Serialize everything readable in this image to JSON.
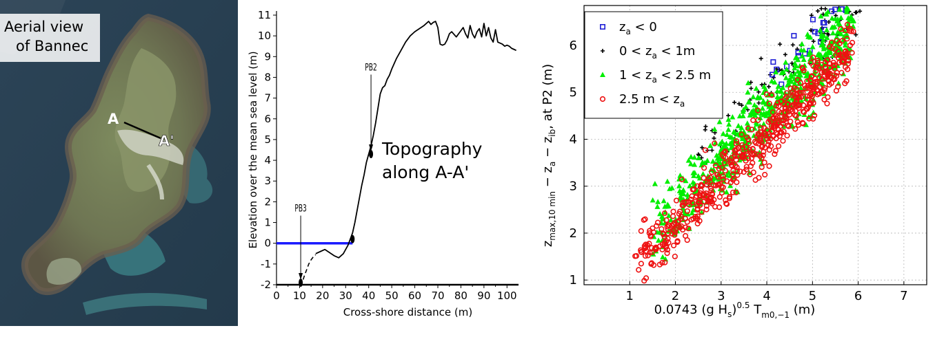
{
  "aerial": {
    "caption_line1": "Aerial view",
    "caption_line2": "of Bannec",
    "point_a": "A",
    "point_a_prime": "A'"
  },
  "topo_chart": {
    "chart_data": {
      "type": "line",
      "xlabel": "Cross-shore distance (m)",
      "ylabel": "Elevation over the mean sea level (m)",
      "xlim": [
        0,
        105
      ],
      "ylim": [
        -2,
        11
      ],
      "xticks": [
        0,
        10,
        20,
        30,
        40,
        50,
        60,
        70,
        80,
        90,
        100
      ],
      "yticks": [
        -2,
        -1,
        0,
        1,
        2,
        3,
        4,
        5,
        6,
        7,
        8,
        9,
        10,
        11
      ],
      "annotation_line1": "Topography",
      "annotation_line2": "along A-A'",
      "series": [
        {
          "x": [
            10,
            11,
            12,
            13,
            14,
            15,
            17,
            19,
            21,
            23,
            25,
            27,
            29,
            30,
            31,
            32,
            33,
            34,
            35,
            36,
            37,
            38,
            39,
            40,
            41,
            42,
            43,
            44,
            45,
            46,
            47,
            48,
            49,
            50,
            52,
            54,
            56,
            58,
            60,
            62,
            64,
            65,
            66,
            67,
            68,
            69,
            70,
            71,
            72,
            73,
            74,
            75,
            76,
            78,
            80,
            81,
            82,
            83,
            84,
            85,
            86,
            87,
            88,
            89,
            90,
            91,
            92,
            93,
            94,
            95,
            96,
            97,
            98,
            99,
            100,
            101,
            102,
            103,
            104
          ],
          "y": [
            -1.9,
            -1.95,
            -1.6,
            -1.3,
            -0.9,
            -0.7,
            -0.5,
            -0.4,
            -0.3,
            -0.45,
            -0.6,
            -0.7,
            -0.5,
            -0.3,
            -0.1,
            0.2,
            0.5,
            1.0,
            1.6,
            2.2,
            2.8,
            3.3,
            3.9,
            4.3,
            4.7,
            5.2,
            5.8,
            6.5,
            7.2,
            7.5,
            7.6,
            7.9,
            8.1,
            8.4,
            8.9,
            9.3,
            9.7,
            10.0,
            10.2,
            10.35,
            10.5,
            10.6,
            10.7,
            10.55,
            10.65,
            10.7,
            10.4,
            9.6,
            9.55,
            9.6,
            9.8,
            10.1,
            10.2,
            9.95,
            10.25,
            10.4,
            10.1,
            9.9,
            10.5,
            10.1,
            9.9,
            10.2,
            10.35,
            9.95,
            10.6,
            10.0,
            10.4,
            9.9,
            9.7,
            10.3,
            9.7,
            9.65,
            9.6,
            9.5,
            9.55,
            9.5,
            9.4,
            9.35,
            9.3
          ]
        }
      ],
      "dashed_segment": {
        "x": [
          10,
          11,
          12,
          13,
          14,
          15,
          16,
          17
        ],
        "y": [
          -1.9,
          -1.95,
          -1.6,
          -1.3,
          -1.0,
          -0.8,
          -0.65,
          -0.55
        ]
      },
      "sea_level_line": {
        "x": [
          0,
          33
        ],
        "y": [
          0,
          0
        ]
      },
      "seabed_line": {
        "x": [
          0,
          105
        ],
        "y": [
          -2,
          -2
        ]
      },
      "markers": [
        {
          "label": "PB3",
          "x": 10.5,
          "y": -1.9,
          "label_y": 1.2
        },
        {
          "label": "PB2",
          "x": 41,
          "y": 4.3,
          "label_y": 8.0
        }
      ],
      "dots": [
        {
          "x": 10.5,
          "y": -1.9
        },
        {
          "x": 33,
          "y": 0.2
        },
        {
          "x": 41,
          "y": 4.3
        }
      ],
      "colors": {
        "curve": "#000000",
        "sea": "#1a1aff"
      }
    }
  },
  "scatter_chart": {
    "chart_data": {
      "type": "scatter",
      "xlabel_parts": {
        "prefix": "0.0743 (g H",
        "sub1": "s",
        "mid": ")",
        "sup": "0.5",
        "t": " T",
        "sub2": "m0,−1",
        "suffix": "   (m)"
      },
      "ylabel_parts": {
        "z": "z",
        "sub1": "max,10 min",
        "mid1": " − z",
        "sub2": "a",
        "mid2": " − z",
        "sub3": "ib",
        "suffix": ",  at P2 (m)"
      },
      "xlim": [
        0,
        7.5
      ],
      "ylim": [
        0.9,
        6.85
      ],
      "xticks": [
        1,
        2,
        3,
        4,
        5,
        6,
        7
      ],
      "yticks": [
        1,
        2,
        3,
        4,
        5,
        6
      ],
      "grid": true,
      "legend_position": "top-left",
      "series": [
        {
          "name_parts": [
            "z",
            "a",
            " < 0"
          ],
          "marker": "square",
          "color": "#1f1fd6",
          "cloud": {
            "x_from": 4.0,
            "x_to": 6.5,
            "y_offset": 1.45,
            "spread": 0.45,
            "count": 45
          }
        },
        {
          "name_parts": [
            "0 < z",
            "a",
            " < 1m"
          ],
          "marker": "plus",
          "color": "#000000",
          "cloud": {
            "x_from": 2.5,
            "x_to": 6.2,
            "y_offset": 1.2,
            "spread": 0.55,
            "count": 110
          }
        },
        {
          "name_parts": [
            "1 < z",
            "a",
            " < 2.5 m"
          ],
          "marker": "triangle",
          "color": "#00ee00",
          "cloud": {
            "x_from": 1.5,
            "x_to": 5.9,
            "y_offset": 0.65,
            "spread": 0.7,
            "count": 620
          }
        },
        {
          "name_parts": [
            "2.5 m < z",
            "a",
            ""
          ],
          "marker": "circle",
          "color": "#ee1111",
          "cloud": {
            "x_from": 1.1,
            "x_to": 5.9,
            "y_offset": 0.25,
            "spread": 0.55,
            "count": 560
          }
        }
      ],
      "trend": {
        "slope": 0.98,
        "intercept": -0.05
      },
      "seed": 7
    }
  }
}
